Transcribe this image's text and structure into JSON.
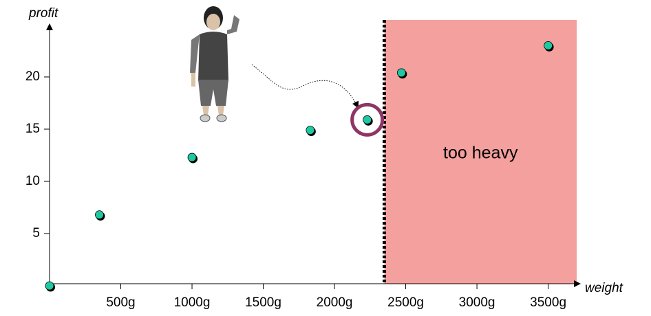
{
  "chart_data": {
    "type": "scatter",
    "x_label": "weight",
    "y_label": "profit",
    "x": [
      0,
      350,
      1000,
      1830,
      2230,
      2470,
      3500
    ],
    "values": [
      0,
      6.8,
      12.3,
      14.9,
      15.9,
      20.4,
      23
    ],
    "color": "#1fc8a0",
    "highlight_index": 4,
    "threshold": 2350,
    "region_label": "too heavy",
    "region_color": "#f4a09e",
    "xlim": [
      0,
      3700
    ],
    "ylim": [
      0,
      25
    ],
    "xticks": [
      {
        "value": 500,
        "label": "500g"
      },
      {
        "value": 1000,
        "label": "1000g"
      },
      {
        "value": 1500,
        "label": "1500g"
      },
      {
        "value": 2000,
        "label": "2000g"
      },
      {
        "value": 2500,
        "label": "2500g"
      },
      {
        "value": 3000,
        "label": "3000g"
      },
      {
        "value": 3500,
        "label": "3500g"
      }
    ],
    "yticks": [
      5,
      10,
      15,
      20
    ]
  }
}
